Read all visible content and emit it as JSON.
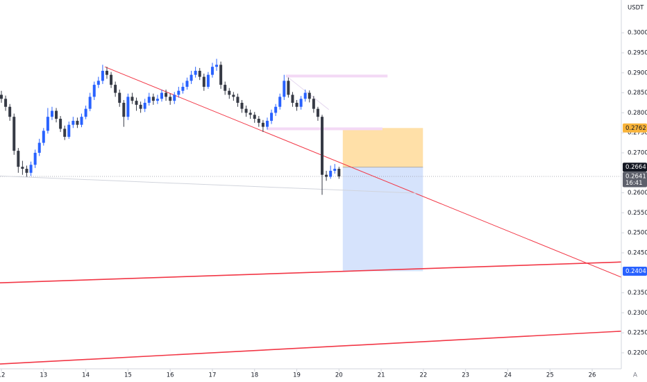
{
  "chart_data": {
    "type": "candlestick",
    "currency": "USDT",
    "scale_button": "A",
    "xlim": [
      11.967,
      26.69
    ],
    "ylim": [
      0.216,
      0.3082
    ],
    "xticks": [
      12,
      13,
      14,
      15,
      16,
      17,
      18,
      19,
      20,
      21,
      22,
      23,
      24,
      25,
      26
    ],
    "yticks": [
      {
        "value": 0.3,
        "label": "0.3000"
      },
      {
        "value": 0.295,
        "label": "0.2950"
      },
      {
        "value": 0.29,
        "label": "0.2900"
      },
      {
        "value": 0.285,
        "label": "0.2850"
      },
      {
        "value": 0.28,
        "label": "0.2800"
      },
      {
        "value": 0.275,
        "label": "0.2750"
      },
      {
        "value": 0.27,
        "label": "0.2700"
      },
      {
        "value": 0.26,
        "label": "0.2600"
      },
      {
        "value": 0.255,
        "label": "0.2550"
      },
      {
        "value": 0.25,
        "label": "0.2500"
      },
      {
        "value": 0.245,
        "label": "0.2450"
      },
      {
        "value": 0.235,
        "label": "0.2350"
      },
      {
        "value": 0.23,
        "label": "0.2300"
      },
      {
        "value": 0.225,
        "label": "0.2250"
      },
      {
        "value": 0.22,
        "label": "0.2200"
      }
    ],
    "up_color": "#2962ff",
    "down_color": "#363a45",
    "x": [
      12.0,
      12.1,
      12.2,
      12.3,
      12.4,
      12.5,
      12.6,
      12.7,
      12.8,
      12.9,
      13.0,
      13.1,
      13.2,
      13.3,
      13.4,
      13.5,
      13.6,
      13.7,
      13.8,
      13.9,
      14.0,
      14.1,
      14.2,
      14.3,
      14.4,
      14.5,
      14.6,
      14.7,
      14.8,
      14.9,
      15.0,
      15.1,
      15.2,
      15.3,
      15.4,
      15.5,
      15.6,
      15.7,
      15.8,
      15.9,
      16.0,
      16.1,
      16.2,
      16.3,
      16.4,
      16.5,
      16.6,
      16.7,
      16.8,
      16.9,
      17.0,
      17.1,
      17.2,
      17.3,
      17.4,
      17.5,
      17.6,
      17.7,
      17.8,
      17.9,
      18.0,
      18.1,
      18.2,
      18.3,
      18.4,
      18.5,
      18.6,
      18.7,
      18.8,
      18.9,
      19.0,
      19.1,
      19.2,
      19.3,
      19.4,
      19.5,
      19.6,
      19.7,
      19.8,
      19.9,
      20.0
    ],
    "open": [
      0.2845,
      0.2835,
      0.2815,
      0.279,
      0.2705,
      0.2665,
      0.266,
      0.265,
      0.267,
      0.27,
      0.2725,
      0.2755,
      0.279,
      0.2805,
      0.2785,
      0.276,
      0.274,
      0.277,
      0.278,
      0.277,
      0.279,
      0.281,
      0.284,
      0.287,
      0.288,
      0.2905,
      0.2895,
      0.287,
      0.285,
      0.2825,
      0.279,
      0.284,
      0.283,
      0.282,
      0.281,
      0.2825,
      0.284,
      0.283,
      0.2835,
      0.285,
      0.284,
      0.283,
      0.2845,
      0.2855,
      0.2865,
      0.288,
      0.2895,
      0.2905,
      0.289,
      0.2865,
      0.2895,
      0.2915,
      0.292,
      0.287,
      0.2855,
      0.2845,
      0.284,
      0.2825,
      0.281,
      0.28,
      0.2795,
      0.2785,
      0.2775,
      0.2765,
      0.278,
      0.28,
      0.2815,
      0.284,
      0.288,
      0.2845,
      0.2825,
      0.2815,
      0.2835,
      0.285,
      0.2835,
      0.281,
      0.279,
      0.2645,
      0.264,
      0.2655,
      0.266
    ],
    "high": [
      0.2855,
      0.2843,
      0.2822,
      0.2798,
      0.2712,
      0.268,
      0.2668,
      0.2678,
      0.2708,
      0.2735,
      0.2762,
      0.2812,
      0.2815,
      0.2812,
      0.2792,
      0.2768,
      0.2778,
      0.279,
      0.2788,
      0.2798,
      0.2818,
      0.285,
      0.2878,
      0.289,
      0.292,
      0.2915,
      0.2902,
      0.2878,
      0.2858,
      0.2832,
      0.2848,
      0.285,
      0.2838,
      0.2828,
      0.2835,
      0.285,
      0.2848,
      0.2845,
      0.2858,
      0.2858,
      0.2848,
      0.2852,
      0.2865,
      0.2875,
      0.2888,
      0.2905,
      0.2915,
      0.2912,
      0.2898,
      0.2902,
      0.2925,
      0.2935,
      0.2928,
      0.2878,
      0.2862,
      0.2852,
      0.2848,
      0.2832,
      0.2818,
      0.2808,
      0.2802,
      0.2792,
      0.2782,
      0.2788,
      0.2808,
      0.2822,
      0.2848,
      0.2895,
      0.2888,
      0.2852,
      0.2832,
      0.2842,
      0.2858,
      0.2856,
      0.2842,
      0.2815,
      0.2795,
      0.2655,
      0.2668,
      0.2672,
      0.2665
    ],
    "low": [
      0.2825,
      0.2805,
      0.278,
      0.2695,
      0.265,
      0.2645,
      0.264,
      0.2642,
      0.2662,
      0.2692,
      0.2718,
      0.2748,
      0.2782,
      0.2776,
      0.2752,
      0.2732,
      0.2735,
      0.2762,
      0.2762,
      0.2764,
      0.2784,
      0.2804,
      0.2832,
      0.2862,
      0.2872,
      0.2885,
      0.2862,
      0.284,
      0.2815,
      0.2765,
      0.2782,
      0.2822,
      0.2805,
      0.28,
      0.2802,
      0.2818,
      0.282,
      0.2822,
      0.2828,
      0.283,
      0.282,
      0.2822,
      0.2838,
      0.2848,
      0.2858,
      0.2872,
      0.2888,
      0.2882,
      0.2855,
      0.286,
      0.2888,
      0.2905,
      0.286,
      0.2845,
      0.2835,
      0.283,
      0.2815,
      0.28,
      0.279,
      0.2785,
      0.2775,
      0.2765,
      0.2752,
      0.2758,
      0.2772,
      0.2792,
      0.2808,
      0.2832,
      0.2838,
      0.2815,
      0.2805,
      0.2808,
      0.2828,
      0.2826,
      0.28,
      0.278,
      0.2595,
      0.263,
      0.2635,
      0.2648,
      0.2635
    ],
    "close": [
      0.2835,
      0.2815,
      0.279,
      0.2705,
      0.2665,
      0.266,
      0.265,
      0.267,
      0.27,
      0.2725,
      0.2755,
      0.279,
      0.2805,
      0.2785,
      0.276,
      0.274,
      0.277,
      0.278,
      0.277,
      0.279,
      0.281,
      0.284,
      0.287,
      0.288,
      0.2905,
      0.2895,
      0.287,
      0.285,
      0.2825,
      0.279,
      0.284,
      0.283,
      0.282,
      0.281,
      0.2825,
      0.284,
      0.283,
      0.2835,
      0.285,
      0.284,
      0.283,
      0.2845,
      0.2855,
      0.2865,
      0.288,
      0.2895,
      0.2905,
      0.289,
      0.2865,
      0.2895,
      0.2915,
      0.292,
      0.287,
      0.2855,
      0.2845,
      0.284,
      0.2825,
      0.281,
      0.28,
      0.2795,
      0.2785,
      0.2775,
      0.2765,
      0.278,
      0.28,
      0.2815,
      0.284,
      0.288,
      0.2845,
      0.2825,
      0.2815,
      0.2835,
      0.285,
      0.2835,
      0.281,
      0.279,
      0.2645,
      0.264,
      0.2655,
      0.266,
      0.2641
    ],
    "last_price": 0.2641,
    "countdown": "16:41",
    "trendlines": [
      {
        "color": "#f23645",
        "width": 1,
        "x": [
          14.45,
          26.69
        ],
        "y": [
          0.2915,
          0.2389
        ]
      },
      {
        "color": "#f23645",
        "width": 1.6,
        "x": [
          11.967,
          26.69
        ],
        "y": [
          0.2375,
          0.2427
        ]
      },
      {
        "color": "#f23645",
        "width": 1.6,
        "x": [
          11.967,
          26.69
        ],
        "y": [
          0.2172,
          0.2254
        ]
      },
      {
        "color": "#d1d4dc",
        "width": 1,
        "x": [
          11.967,
          21.83
        ],
        "y": [
          0.2642,
          0.2599
        ]
      },
      {
        "color": "#e6d9f0",
        "width": 1,
        "x": [
          18.74,
          19.76
        ],
        "y": [
          0.2893,
          0.2808
        ]
      }
    ],
    "zones": [
      {
        "color": "#f3d9f5",
        "y": 0.2892,
        "x": [
          18.74,
          21.15
        ]
      },
      {
        "color": "#f3d9f5",
        "y": 0.276,
        "x": [
          18.3,
          21.03
        ]
      }
    ],
    "position": {
      "entry": 0.2664,
      "stop": 0.2762,
      "target": 0.2404,
      "x": [
        20.09,
        21.99
      ],
      "stop_color": "#ffe0a8",
      "target_color": "#d6e3fc",
      "entry_label_color": "#131722",
      "stop_label_color": "#f9b43a",
      "target_label_color": "#2962ff",
      "last_label_color": "#5d606b"
    }
  }
}
